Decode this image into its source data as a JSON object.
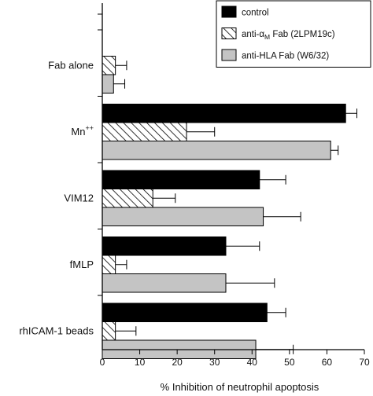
{
  "chart_data": {
    "type": "bar",
    "orientation": "horizontal",
    "categories": [
      "Fab alone",
      "Mn++",
      "VIM12",
      "fMLP",
      "rhICAM-1 beads"
    ],
    "category_labels": [
      {
        "text": "Fab alone",
        "sup": ""
      },
      {
        "text": "Mn",
        "sup": "++"
      },
      {
        "text": "VIM12",
        "sup": ""
      },
      {
        "text": "fMLP",
        "sup": ""
      },
      {
        "text": "rhICAM-1 beads",
        "sup": ""
      }
    ],
    "series": [
      {
        "name": "control",
        "fill": "#000000",
        "pattern": "solid",
        "values": [
          null,
          65,
          42,
          33,
          44
        ],
        "errors": [
          null,
          3,
          7,
          9,
          5
        ]
      },
      {
        "name": "anti-αM Fab (2LPM19c)",
        "fill": "#ffffff",
        "pattern": "hatch",
        "values": [
          3.5,
          22.5,
          13.5,
          3.5,
          3.5
        ],
        "errors": [
          3,
          7.5,
          6,
          3,
          5.5
        ]
      },
      {
        "name": "anti-HLA Fab (W6/32)",
        "fill": "#c4c4c4",
        "pattern": "solid",
        "values": [
          3,
          61,
          43,
          33,
          41
        ],
        "errors": [
          3,
          2,
          10,
          13,
          10
        ]
      }
    ],
    "legend_items": [
      {
        "text": "control",
        "sub": "",
        "rest": ""
      },
      {
        "text": "anti-α",
        "sub": "M",
        "rest": " Fab (2LPM19c)"
      },
      {
        "text": "anti-HLA Fab (W6/32)",
        "sub": "",
        "rest": ""
      }
    ],
    "xlim": [
      0,
      70
    ],
    "xticks": [
      0,
      10,
      20,
      30,
      40,
      50,
      60,
      70
    ],
    "xlabel": "% Inhibition of neutrophil apoptosis",
    "ylabel": "",
    "title": "",
    "grid": false,
    "legend_position": "top-right"
  }
}
